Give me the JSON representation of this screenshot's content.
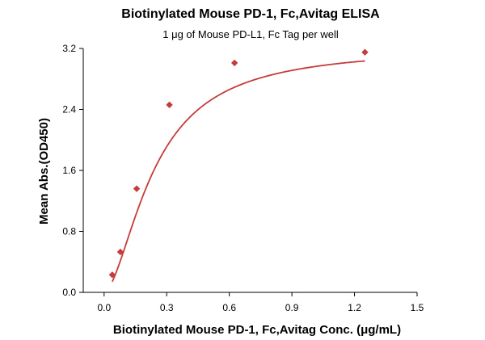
{
  "chart_data": {
    "type": "scatter",
    "title": "Biotinylated Mouse PD-1, Fc,Avitag ELISA",
    "subtitle": "1 μg of Mouse PD-L1, Fc Tag per well",
    "xlabel": "Biotinylated Mouse PD-1, Fc,Avitag Conc. (μg/mL)",
    "ylabel": "Mean Abs.(OD450)",
    "xlim": [
      -0.1,
      1.5
    ],
    "ylim": [
      0.0,
      3.2
    ],
    "xticks": [
      "0.0",
      "0.3",
      "0.6",
      "0.9",
      "1.2",
      "1.5"
    ],
    "yticks": [
      "0.0",
      "0.8",
      "1.6",
      "2.4",
      "3.2"
    ],
    "grid": false,
    "series": [
      {
        "color": "#c43c3c",
        "marker": "diamond",
        "x": [
          0.039,
          0.078,
          0.156,
          0.313,
          0.625,
          1.25
        ],
        "y": [
          0.23,
          0.53,
          1.36,
          2.46,
          3.01,
          3.15
        ],
        "fit": "four-parameter logistic curve"
      }
    ]
  }
}
